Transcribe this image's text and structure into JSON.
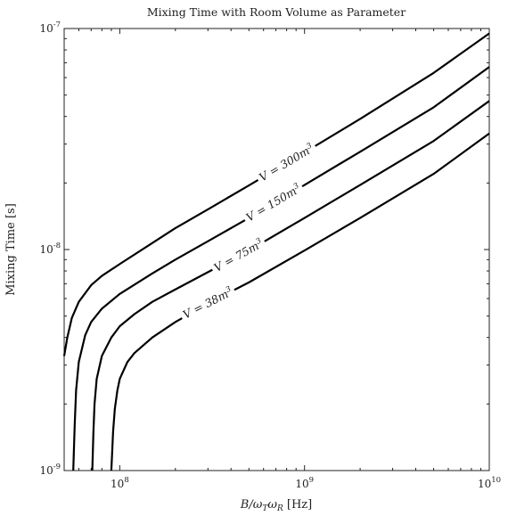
{
  "chart_data": {
    "type": "line",
    "title": "Mixing Time with Room Volume as Parameter",
    "xlabel": "B/ωTωR [Hz]",
    "xlabel_parts": {
      "main": "B/ω",
      "sub1": "T",
      "mid": "ω",
      "sub2": "R",
      "unit": " [Hz]"
    },
    "ylabel": "Mixing Time [s]",
    "xscale": "log",
    "yscale": "log",
    "xlim": [
      50000000,
      10000000000
    ],
    "ylim": [
      1e-09,
      1e-07
    ],
    "xticks": [
      {
        "value": 100000000,
        "base": "10",
        "exp": "8"
      },
      {
        "value": 1000000000,
        "base": "10",
        "exp": "9"
      },
      {
        "value": 10000000000,
        "base": "10",
        "exp": "10"
      }
    ],
    "yticks": [
      {
        "value": 1e-09,
        "base": "10",
        "exp": "-9"
      },
      {
        "value": 1e-08,
        "base": "10",
        "exp": "-8"
      },
      {
        "value": 1e-07,
        "base": "10",
        "exp": "-7"
      }
    ],
    "grid": false,
    "legend": "none",
    "series": [
      {
        "label_text": "V = 300m",
        "label_sup": "3",
        "label_at_x": 800000000,
        "x": [
          50000000,
          52000000,
          55000000,
          60000000,
          70000000,
          80000000,
          100000000,
          150000000,
          200000000,
          300000000,
          500000000,
          1000000000,
          2000000000,
          5000000000,
          10000000000
        ],
        "y": [
          3.3e-09,
          4e-09,
          4.9e-09,
          5.8e-09,
          6.9e-09,
          7.6e-09,
          8.6e-09,
          1.07e-08,
          1.25e-08,
          1.52e-08,
          1.95e-08,
          2.75e-08,
          3.9e-08,
          6.3e-08,
          9.5e-08
        ]
      },
      {
        "label_text": "V = 150m",
        "label_sup": "3",
        "label_at_x": 680000000,
        "x": [
          56000000,
          57000000,
          58000000,
          60000000,
          65000000,
          70000000,
          80000000,
          100000000,
          150000000,
          200000000,
          300000000,
          500000000,
          1000000000,
          2000000000,
          5000000000,
          10000000000
        ],
        "y": [
          1e-09,
          1.6e-09,
          2.3e-09,
          3.1e-09,
          4.1e-09,
          4.7e-09,
          5.4e-09,
          6.3e-09,
          7.8e-09,
          9e-09,
          1.09e-08,
          1.39e-08,
          1.96e-08,
          2.77e-08,
          4.4e-08,
          6.7e-08
        ]
      },
      {
        "label_text": "V = 75m",
        "label_sup": "3",
        "label_at_x": 440000000,
        "x": [
          71000000,
          72000000,
          73000000,
          75000000,
          80000000,
          90000000,
          100000000,
          120000000,
          150000000,
          200000000,
          300000000,
          500000000,
          1000000000,
          2000000000,
          5000000000,
          10000000000
        ],
        "y": [
          1e-09,
          1.5e-09,
          2e-09,
          2.6e-09,
          3.3e-09,
          4e-09,
          4.5e-09,
          5.1e-09,
          5.8e-09,
          6.6e-09,
          7.9e-09,
          9.9e-09,
          1.39e-08,
          1.96e-08,
          3.1e-08,
          4.7e-08
        ]
      },
      {
        "label_text": "V = 38m",
        "label_sup": "3",
        "label_at_x": 300000000,
        "x": [
          90000000,
          92000000,
          94000000,
          97000000,
          100000000,
          110000000,
          120000000,
          150000000,
          200000000,
          300000000,
          500000000,
          1000000000,
          2000000000,
          5000000000,
          10000000000
        ],
        "y": [
          1e-09,
          1.5e-09,
          1.9e-09,
          2.3e-09,
          2.6e-09,
          3.1e-09,
          3.4e-09,
          4e-09,
          4.7e-09,
          5.7e-09,
          7.1e-09,
          9.9e-09,
          1.39e-08,
          2.2e-08,
          3.35e-08
        ]
      }
    ]
  }
}
